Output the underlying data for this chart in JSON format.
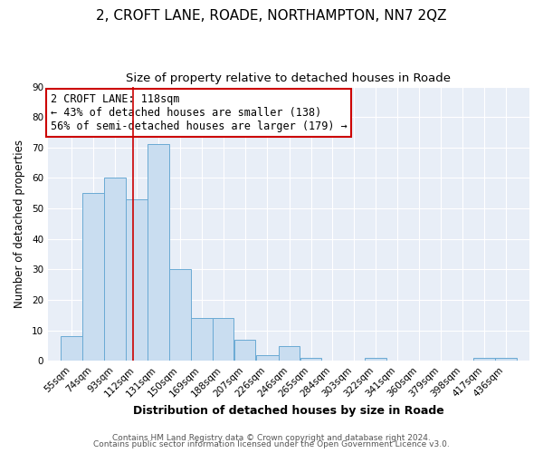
{
  "title1": "2, CROFT LANE, ROADE, NORTHAMPTON, NN7 2QZ",
  "title2": "Size of property relative to detached houses in Roade",
  "xlabel": "Distribution of detached houses by size in Roade",
  "ylabel": "Number of detached properties",
  "categories": [
    "55sqm",
    "74sqm",
    "93sqm",
    "112sqm",
    "131sqm",
    "150sqm",
    "169sqm",
    "188sqm",
    "207sqm",
    "226sqm",
    "246sqm",
    "265sqm",
    "284sqm",
    "303sqm",
    "322sqm",
    "341sqm",
    "360sqm",
    "379sqm",
    "398sqm",
    "417sqm",
    "436sqm"
  ],
  "values": [
    8,
    55,
    60,
    53,
    71,
    30,
    14,
    14,
    7,
    2,
    5,
    1,
    0,
    0,
    1,
    0,
    0,
    0,
    0,
    1,
    1
  ],
  "bar_color": "#c9ddf0",
  "bar_edge_color": "#6aaad4",
  "property_line_x": 118,
  "bin_edges": [
    55,
    74,
    93,
    112,
    131,
    150,
    169,
    188,
    207,
    226,
    246,
    265,
    284,
    303,
    322,
    341,
    360,
    379,
    398,
    417,
    436,
    455
  ],
  "annotation_title": "2 CROFT LANE: 118sqm",
  "annotation_line1": "← 43% of detached houses are smaller (138)",
  "annotation_line2": "56% of semi-detached houses are larger (179) →",
  "annotation_box_color": "#ffffff",
  "annotation_box_edge": "#cc0000",
  "vline_color": "#cc0000",
  "ylim": [
    0,
    90
  ],
  "yticks": [
    0,
    10,
    20,
    30,
    40,
    50,
    60,
    70,
    80,
    90
  ],
  "footer1": "Contains HM Land Registry data © Crown copyright and database right 2024.",
  "footer2": "Contains public sector information licensed under the Open Government Licence v3.0.",
  "bg_color": "#e8eef7",
  "plot_bg_color": "#e8eef7",
  "grid_color": "#ffffff",
  "outer_bg": "#ffffff",
  "title1_fontsize": 11,
  "title2_fontsize": 9.5,
  "xlabel_fontsize": 9,
  "ylabel_fontsize": 8.5,
  "tick_fontsize": 7.5,
  "annotation_fontsize": 8.5,
  "footer_fontsize": 6.5
}
